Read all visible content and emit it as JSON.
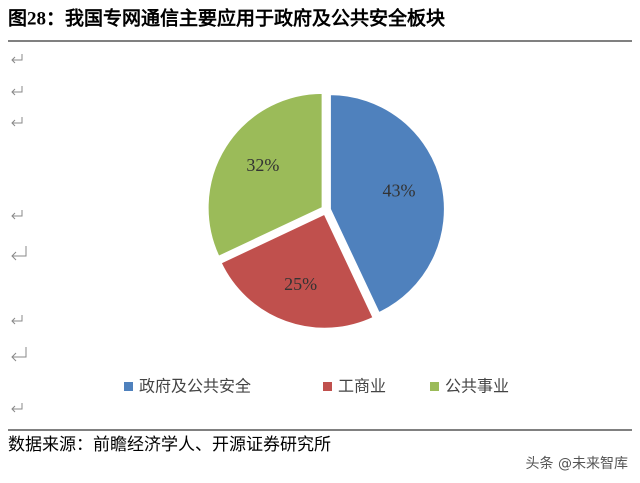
{
  "title": "图28：我国专网通信主要应用于政府及公共安全板块",
  "chart_data": {
    "type": "pie",
    "categories": [
      "政府及公共安全",
      "工商业",
      "公共事业"
    ],
    "values": [
      43,
      25,
      32
    ],
    "value_labels": [
      "43%",
      "25%",
      "32%"
    ],
    "colors": [
      "#4f81bd",
      "#c0504d",
      "#9bbb59"
    ]
  },
  "source": "数据来源：前瞻经济学人、开源证券研究所",
  "watermark": "头条 @未来智库"
}
